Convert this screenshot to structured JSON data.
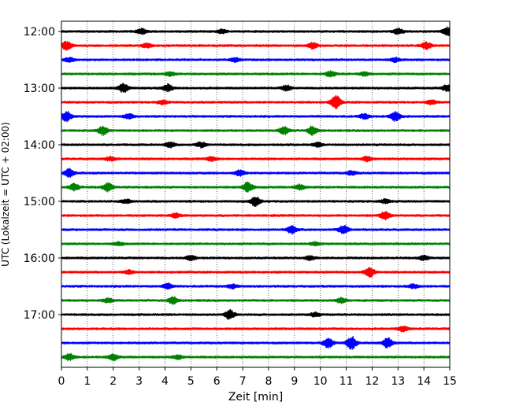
{
  "chart_data": {
    "type": "line",
    "title": "",
    "xlabel": "Zeit  [min]",
    "ylabel": "UTC (Lokalzeit = UTC + 02:00)",
    "xlim": [
      0,
      15
    ],
    "x_ticks": [
      0,
      1,
      2,
      3,
      4,
      5,
      6,
      7,
      8,
      9,
      10,
      11,
      12,
      13,
      14,
      15
    ],
    "y_tick_labels": [
      "12:00",
      "13:00",
      "14:00",
      "15:00",
      "16:00",
      "17:00"
    ],
    "grid": "vertical-dotted",
    "trace_interval_min": 15,
    "colors": [
      "#000000",
      "#ff0000",
      "#0000ff",
      "#008000"
    ],
    "traces": [
      {
        "start": "12:00",
        "color": "#000000",
        "events": [
          [
            3.1,
            0.6
          ],
          [
            6.2,
            0.4
          ],
          [
            13.0,
            0.6
          ],
          [
            14.9,
            0.8
          ]
        ]
      },
      {
        "start": "12:15",
        "color": "#ff0000",
        "events": [
          [
            0.2,
            0.9
          ],
          [
            3.3,
            0.4
          ],
          [
            9.7,
            0.6
          ],
          [
            14.1,
            0.7
          ]
        ]
      },
      {
        "start": "12:30",
        "color": "#0000ff",
        "events": [
          [
            0.3,
            0.4
          ],
          [
            6.7,
            0.4
          ],
          [
            12.9,
            0.4
          ]
        ]
      },
      {
        "start": "12:45",
        "color": "#008000",
        "events": [
          [
            4.2,
            0.4
          ],
          [
            10.4,
            0.6
          ],
          [
            11.7,
            0.4
          ]
        ]
      },
      {
        "start": "13:00",
        "color": "#000000",
        "events": [
          [
            2.4,
            0.9
          ],
          [
            4.1,
            0.7
          ],
          [
            8.7,
            0.5
          ],
          [
            14.9,
            0.6
          ]
        ]
      },
      {
        "start": "13:15",
        "color": "#ff0000",
        "events": [
          [
            3.9,
            0.4
          ],
          [
            10.6,
            1.4
          ],
          [
            14.3,
            0.4
          ]
        ]
      },
      {
        "start": "13:30",
        "color": "#0000ff",
        "events": [
          [
            0.2,
            1.0
          ],
          [
            2.6,
            0.5
          ],
          [
            11.7,
            0.5
          ],
          [
            12.9,
            1.0
          ]
        ]
      },
      {
        "start": "13:45",
        "color": "#008000",
        "events": [
          [
            1.6,
            0.9
          ],
          [
            8.6,
            0.8
          ],
          [
            9.7,
            0.9
          ]
        ]
      },
      {
        "start": "14:00",
        "color": "#000000",
        "events": [
          [
            4.2,
            0.5
          ],
          [
            5.4,
            0.5
          ],
          [
            9.9,
            0.4
          ]
        ]
      },
      {
        "start": "14:15",
        "color": "#ff0000",
        "events": [
          [
            1.9,
            0.4
          ],
          [
            5.8,
            0.4
          ],
          [
            11.8,
            0.5
          ]
        ]
      },
      {
        "start": "14:30",
        "color": "#0000ff",
        "events": [
          [
            0.3,
            0.8
          ],
          [
            6.9,
            0.6
          ],
          [
            11.2,
            0.4
          ]
        ]
      },
      {
        "start": "14:45",
        "color": "#008000",
        "events": [
          [
            0.5,
            0.7
          ],
          [
            1.8,
            0.9
          ],
          [
            7.2,
            1.0
          ],
          [
            9.2,
            0.5
          ]
        ]
      },
      {
        "start": "15:00",
        "color": "#000000",
        "events": [
          [
            2.5,
            0.4
          ],
          [
            7.5,
            1.0
          ],
          [
            12.5,
            0.4
          ]
        ]
      },
      {
        "start": "15:15",
        "color": "#ff0000",
        "events": [
          [
            4.4,
            0.4
          ],
          [
            12.5,
            0.8
          ]
        ]
      },
      {
        "start": "15:30",
        "color": "#0000ff",
        "events": [
          [
            8.9,
            0.8
          ],
          [
            10.9,
            0.9
          ]
        ]
      },
      {
        "start": "15:45",
        "color": "#008000",
        "events": [
          [
            2.2,
            0.3
          ],
          [
            9.8,
            0.3
          ]
        ]
      },
      {
        "start": "16:00",
        "color": "#000000",
        "events": [
          [
            5.0,
            0.5
          ],
          [
            9.6,
            0.4
          ],
          [
            14.0,
            0.5
          ]
        ]
      },
      {
        "start": "16:15",
        "color": "#ff0000",
        "events": [
          [
            2.6,
            0.4
          ],
          [
            11.9,
            1.0
          ]
        ]
      },
      {
        "start": "16:30",
        "color": "#0000ff",
        "events": [
          [
            4.1,
            0.5
          ],
          [
            6.6,
            0.4
          ],
          [
            13.6,
            0.4
          ]
        ]
      },
      {
        "start": "16:45",
        "color": "#008000",
        "events": [
          [
            1.8,
            0.4
          ],
          [
            4.3,
            0.7
          ],
          [
            10.8,
            0.5
          ]
        ]
      },
      {
        "start": "17:00",
        "color": "#000000",
        "events": [
          [
            6.5,
            0.9
          ],
          [
            9.8,
            0.4
          ]
        ]
      },
      {
        "start": "17:15",
        "color": "#ff0000",
        "events": [
          [
            13.2,
            0.5
          ]
        ]
      },
      {
        "start": "17:30",
        "color": "#0000ff",
        "events": [
          [
            10.3,
            1.0
          ],
          [
            11.2,
            1.4
          ],
          [
            12.6,
            1.0
          ]
        ]
      },
      {
        "start": "17:45",
        "color": "#008000",
        "events": [
          [
            0.3,
            0.7
          ],
          [
            2.0,
            0.6
          ],
          [
            4.5,
            0.4
          ]
        ]
      }
    ]
  }
}
